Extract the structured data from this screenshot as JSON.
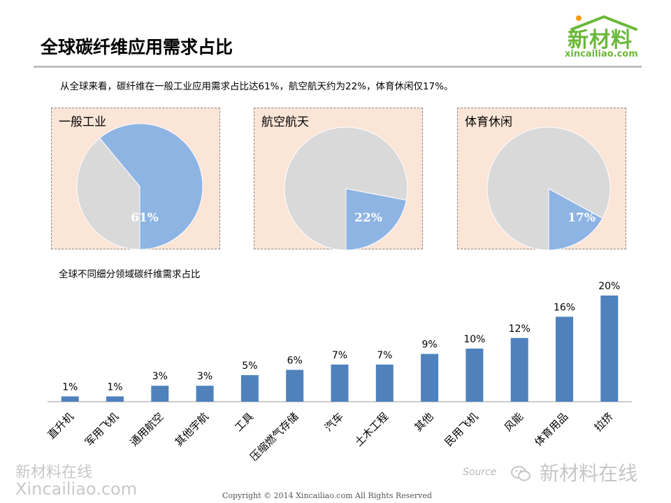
{
  "page": {
    "title": "全球碳纤维应用需求占比",
    "summary": "从全球来看，碳纤维在一般工业应用需求占比达61%，航空航天约为22%，体育休闲仅17%。",
    "bar_caption": "全球不同细分领域碳纤维需求占比",
    "logo_mark": "新材料",
    "logo_url": "xincailiao.com",
    "watermark_line1": "新材料在线",
    "watermark_line2": "Xincailiao.com",
    "source_text": "Source",
    "wechat_watermark": "新材料在线",
    "copyright": "Copyright © 2014   Xincailiao.com    All Rights Reserved"
  },
  "colors": {
    "pie_highlight": "#8eb4e3",
    "pie_rest": "#d9d9d9",
    "panel_bg": "#fbe5d7",
    "bar": "#4f81bd",
    "logo_green": "#6ab83a",
    "logo_dot": "#f39c12"
  },
  "chart_data": [
    {
      "type": "pie",
      "title": "一般工业",
      "slices": [
        {
          "label": "61%",
          "value": 61,
          "color": "#8eb4e3"
        },
        {
          "label": "",
          "value": 39,
          "color": "#d9d9d9"
        }
      ]
    },
    {
      "type": "pie",
      "title": "航空航天",
      "slices": [
        {
          "label": "22%",
          "value": 22,
          "color": "#8eb4e3"
        },
        {
          "label": "",
          "value": 78,
          "color": "#d9d9d9"
        }
      ]
    },
    {
      "type": "pie",
      "title": "体育休闲",
      "slices": [
        {
          "label": "17%",
          "value": 17,
          "color": "#8eb4e3"
        },
        {
          "label": "",
          "value": 83,
          "color": "#d9d9d9"
        }
      ]
    },
    {
      "type": "bar",
      "title": "全球不同细分领域碳纤维需求占比",
      "categories": [
        "直升机",
        "军用飞机",
        "通用航空",
        "其他宇航",
        "工具",
        "压缩燃气存储",
        "汽车",
        "土木工程",
        "其他",
        "民用飞机",
        "风能",
        "体育用品",
        "拉挤"
      ],
      "values": [
        1,
        1,
        3,
        3,
        5,
        6,
        7,
        7,
        9,
        10,
        12,
        16,
        20
      ],
      "data_labels": [
        "1%",
        "1%",
        "3%",
        "3%",
        "5%",
        "6%",
        "7%",
        "7%",
        "9%",
        "10%",
        "12%",
        "16%",
        "20%"
      ],
      "ylim": [
        0,
        20
      ],
      "grid": false,
      "legend": "none"
    }
  ]
}
